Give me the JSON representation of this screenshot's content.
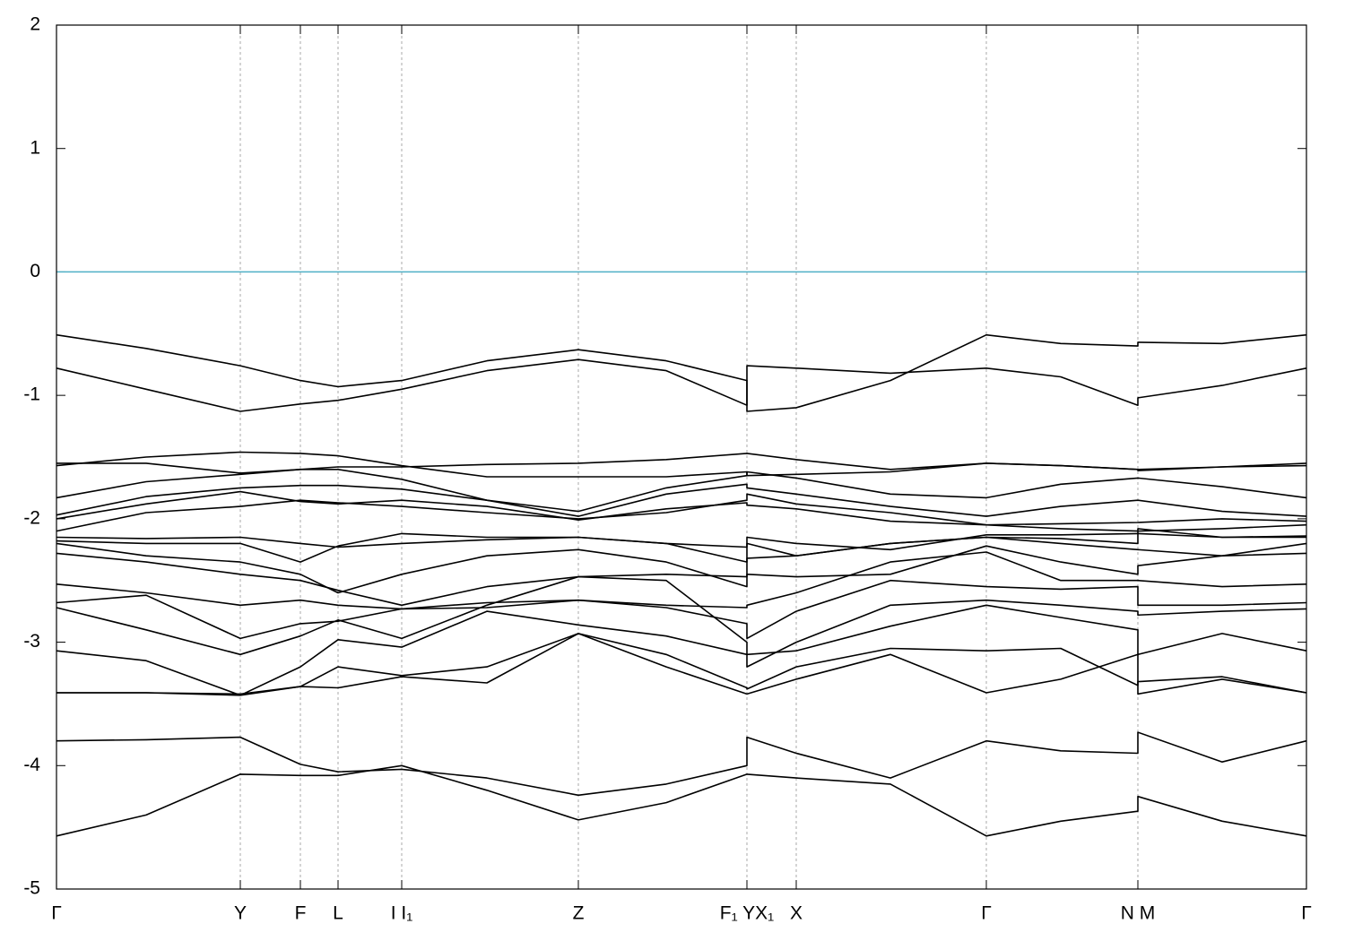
{
  "chart_data": {
    "type": "line",
    "line_color": "#000000",
    "grid_color": "#aaaaaa",
    "reference_line": {
      "value": 0,
      "color": "#4fb0c6"
    },
    "xlim": [
      0,
      13.94
    ],
    "ylim": [
      -5,
      2
    ],
    "yticks": [
      -5,
      -4,
      -3,
      -2,
      -1,
      0,
      1,
      2
    ],
    "xticks": [
      {
        "value": 0,
        "label": "Γ"
      },
      {
        "value": 2.05,
        "label": "Y"
      },
      {
        "value": 2.72,
        "label": "F"
      },
      {
        "value": 3.14,
        "label": "L"
      },
      {
        "value": 3.85,
        "label": "I I₁"
      },
      {
        "value": 5.82,
        "label": "Z"
      },
      {
        "value": 7.7,
        "label": "F₁ YX₁"
      },
      {
        "value": 8.25,
        "label": "X"
      },
      {
        "value": 10.37,
        "label": "Γ"
      },
      {
        "value": 12.06,
        "label": "N M"
      },
      {
        "value": 13.94,
        "label": "Γ"
      }
    ],
    "grid": true,
    "x": [
      0,
      1.0,
      2.05,
      2.72,
      3.14,
      3.85,
      4.8,
      5.82,
      6.8,
      7.7,
      7.7,
      8.25,
      9.3,
      10.37,
      11.2,
      12.06,
      12.06,
      13.0,
      13.94
    ],
    "series": [
      {
        "values": [
          -0.51,
          -0.62,
          -0.76,
          -0.88,
          -0.93,
          -0.88,
          -0.72,
          -0.63,
          -0.72,
          -0.88,
          -1.13,
          -1.1,
          -0.88,
          -0.51,
          -0.58,
          -0.6,
          -0.57,
          -0.58,
          -0.51
        ]
      },
      {
        "values": [
          -0.78,
          -0.95,
          -1.13,
          -1.07,
          -1.04,
          -0.95,
          -0.8,
          -0.71,
          -0.8,
          -1.08,
          -0.76,
          -0.78,
          -0.82,
          -0.78,
          -0.85,
          -1.08,
          -1.02,
          -0.92,
          -0.78
        ]
      },
      {
        "values": [
          -1.55,
          -1.55,
          -1.63,
          -1.6,
          -1.58,
          -1.58,
          -1.56,
          -1.55,
          -1.52,
          -1.47,
          -1.47,
          -1.52,
          -1.6,
          -1.55,
          -1.57,
          -1.6,
          -1.6,
          -1.58,
          -1.55
        ]
      },
      {
        "values": [
          -1.57,
          -1.5,
          -1.46,
          -1.47,
          -1.49,
          -1.57,
          -1.66,
          -1.66,
          -1.66,
          -1.62,
          -1.65,
          -1.64,
          -1.62,
          -1.55,
          -1.57,
          -1.6,
          -1.61,
          -1.58,
          -1.57
        ]
      },
      {
        "values": [
          -1.83,
          -1.7,
          -1.64,
          -1.6,
          -1.6,
          -1.68,
          -1.85,
          -1.94,
          -1.75,
          -1.65,
          -1.62,
          -1.67,
          -1.8,
          -1.83,
          -1.72,
          -1.67,
          -1.67,
          -1.74,
          -1.83
        ]
      },
      {
        "values": [
          -1.97,
          -1.82,
          -1.75,
          -1.73,
          -1.73,
          -1.76,
          -1.85,
          -1.98,
          -1.8,
          -1.72,
          -1.75,
          -1.8,
          -1.9,
          -1.98,
          -1.9,
          -1.85,
          -1.85,
          -1.94,
          -1.98
        ]
      },
      {
        "values": [
          -2.0,
          -1.88,
          -1.78,
          -1.86,
          -1.88,
          -1.85,
          -1.9,
          -2.01,
          -1.92,
          -1.87,
          -1.89,
          -1.92,
          -2.02,
          -2.05,
          -2.04,
          -2.03,
          -2.03,
          -2.0,
          -2.02
        ]
      },
      {
        "values": [
          -2.1,
          -1.95,
          -1.9,
          -1.85,
          -1.87,
          -1.9,
          -1.95,
          -2.0,
          -1.95,
          -1.85,
          -1.8,
          -1.88,
          -1.95,
          -2.05,
          -2.08,
          -2.1,
          -2.1,
          -2.08,
          -2.05
        ]
      },
      {
        "values": [
          -2.15,
          -2.16,
          -2.15,
          -2.2,
          -2.23,
          -2.2,
          -2.17,
          -2.15,
          -2.2,
          -2.23,
          -2.15,
          -2.2,
          -2.25,
          -2.13,
          -2.13,
          -2.12,
          -2.12,
          -2.15,
          -2.14
        ]
      },
      {
        "values": [
          -2.18,
          -2.2,
          -2.2,
          -2.35,
          -2.22,
          -2.12,
          -2.15,
          -2.15,
          -2.2,
          -2.35,
          -2.2,
          -2.3,
          -2.2,
          -2.15,
          -2.16,
          -2.2,
          -2.08,
          -2.15,
          -2.15
        ]
      },
      {
        "values": [
          -2.2,
          -2.3,
          -2.35,
          -2.45,
          -2.6,
          -2.45,
          -2.3,
          -2.25,
          -2.35,
          -2.55,
          -2.32,
          -2.3,
          -2.2,
          -2.15,
          -2.2,
          -2.25,
          -2.25,
          -2.3,
          -2.2
        ]
      },
      {
        "values": [
          -2.28,
          -2.35,
          -2.45,
          -2.5,
          -2.58,
          -2.7,
          -2.55,
          -2.47,
          -2.45,
          -2.47,
          -2.45,
          -2.47,
          -2.45,
          -2.22,
          -2.35,
          -2.45,
          -2.38,
          -2.3,
          -2.28
        ]
      },
      {
        "values": [
          -2.53,
          -2.6,
          -2.7,
          -2.66,
          -2.7,
          -2.73,
          -2.72,
          -2.66,
          -2.7,
          -2.72,
          -2.7,
          -2.6,
          -2.35,
          -2.27,
          -2.5,
          -2.5,
          -2.5,
          -2.55,
          -2.53
        ]
      },
      {
        "values": [
          -2.68,
          -2.62,
          -2.97,
          -2.85,
          -2.83,
          -2.73,
          -2.68,
          -2.66,
          -2.72,
          -2.85,
          -2.97,
          -2.75,
          -2.5,
          -2.55,
          -2.57,
          -2.55,
          -2.7,
          -2.7,
          -2.68
        ]
      },
      {
        "values": [
          -2.72,
          -2.9,
          -3.1,
          -2.95,
          -2.82,
          -2.97,
          -2.7,
          -2.47,
          -2.5,
          -3.0,
          -3.2,
          -3.0,
          -2.7,
          -2.66,
          -2.7,
          -2.75,
          -2.78,
          -2.75,
          -2.73
        ]
      },
      {
        "values": [
          -3.07,
          -3.15,
          -3.43,
          -3.2,
          -2.98,
          -3.04,
          -2.75,
          -2.86,
          -2.95,
          -3.1,
          -3.1,
          -3.07,
          -2.87,
          -2.7,
          -2.8,
          -2.9,
          -3.1,
          -2.93,
          -3.07
        ]
      },
      {
        "values": [
          -3.41,
          -3.41,
          -3.42,
          -3.36,
          -3.2,
          -3.27,
          -3.2,
          -2.93,
          -3.1,
          -3.37,
          -3.38,
          -3.2,
          -3.05,
          -3.07,
          -3.05,
          -3.35,
          -3.32,
          -3.28,
          -3.41
        ]
      },
      {
        "values": [
          -3.41,
          -3.41,
          -3.43,
          -3.36,
          -3.37,
          -3.28,
          -3.33,
          -2.93,
          -3.2,
          -3.42,
          -3.42,
          -3.3,
          -3.1,
          -3.41,
          -3.3,
          -3.1,
          -3.42,
          -3.3,
          -3.41
        ]
      },
      {
        "values": [
          -3.8,
          -3.79,
          -3.77,
          -3.99,
          -4.05,
          -4.03,
          -4.1,
          -4.24,
          -4.15,
          -4.0,
          -3.77,
          -3.9,
          -4.1,
          -3.8,
          -3.88,
          -3.9,
          -3.73,
          -3.97,
          -3.8
        ]
      },
      {
        "values": [
          -4.57,
          -4.4,
          -4.07,
          -4.08,
          -4.08,
          -4.0,
          -4.2,
          -4.44,
          -4.3,
          -4.07,
          -4.07,
          -4.1,
          -4.15,
          -4.57,
          -4.45,
          -4.37,
          -4.25,
          -4.45,
          -4.57
        ]
      }
    ]
  }
}
